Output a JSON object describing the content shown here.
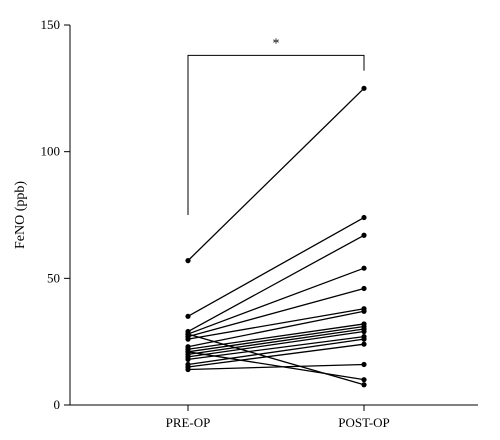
{
  "chart_data": {
    "type": "line",
    "title": "",
    "xlabel": "",
    "ylabel": "FeNO (ppb)",
    "categories": [
      "PRE-OP",
      "POST-OP"
    ],
    "ylim": [
      0,
      150
    ],
    "yticks": [
      "0",
      "50",
      "100",
      "150"
    ],
    "grid": false,
    "legend": "none",
    "pairs": [
      [
        57,
        125
      ],
      [
        35,
        74
      ],
      [
        29,
        67
      ],
      [
        28,
        54
      ],
      [
        27,
        46
      ],
      [
        26,
        38
      ],
      [
        23,
        37
      ],
      [
        22,
        32
      ],
      [
        21,
        31
      ],
      [
        20,
        30
      ],
      [
        19,
        29
      ],
      [
        18,
        27
      ],
      [
        16,
        26
      ],
      [
        15,
        24
      ],
      [
        14,
        16
      ],
      [
        21,
        10
      ],
      [
        28,
        8
      ]
    ],
    "significance": {
      "label": "*",
      "bracket_top": 138,
      "left_drop_to": 75,
      "right_drop_to": 132
    }
  }
}
